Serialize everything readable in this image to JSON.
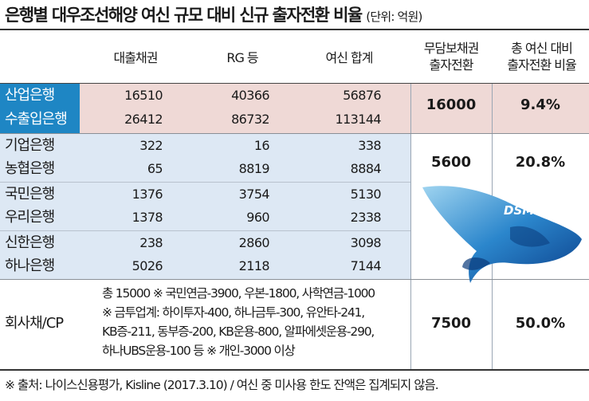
{
  "title": "은행별 대우조선해양 여신 규모 대비 신규 출자전환 비율",
  "unit": "(단위: 억원)",
  "columns": {
    "c1": "대출채권",
    "c2": "RG 등",
    "c3": "여신 합계",
    "c4_line1": "무담보채권",
    "c4_line2": "출자전환",
    "c5_line1": "총 여신 대비",
    "c5_line2": "출자전환 비율"
  },
  "rows": [
    {
      "bank": "산업은행",
      "loan": "16510",
      "rg": "40366",
      "total": "56876"
    },
    {
      "bank": "수출입은행",
      "loan": "26412",
      "rg": "86732",
      "total": "113144"
    },
    {
      "bank": "기업은행",
      "loan": "322",
      "rg": "16",
      "total": "338"
    },
    {
      "bank": "농협은행",
      "loan": "65",
      "rg": "8819",
      "total": "8884"
    },
    {
      "bank": "국민은행",
      "loan": "1376",
      "rg": "3754",
      "total": "5130"
    },
    {
      "bank": "우리은행",
      "loan": "1378",
      "rg": "960",
      "total": "2338"
    },
    {
      "bank": "신한은행",
      "loan": "238",
      "rg": "2860",
      "total": "3098"
    },
    {
      "bank": "하나은행",
      "loan": "5026",
      "rg": "2118",
      "total": "7144"
    }
  ],
  "groups": {
    "g1": {
      "conversion": "16000",
      "ratio": "9.4%"
    },
    "g2": {
      "conversion": "5600",
      "ratio": "20.8%"
    },
    "g3": {
      "conversion": "7500",
      "ratio": "50.0%"
    }
  },
  "bond": {
    "label": "회사채/CP",
    "line1": "총 15000  ※ 국민연금-3900, 우본-1800, 사학연금-1000",
    "line2": "※ 금투업계: 하이투자-400, 하나금투-300, 유안타-241,",
    "line3": "KB증-211, 동부증-200, KB운용-800, 알파에셋운용-290,",
    "line4": "하나UBS운용-100 등  ※ 개인-3000 이상"
  },
  "logo_text": "DSME",
  "footer": "※ 출처: 나이스신용평가, Kisline (2017.3.10) / 여신 중 미사용 한도 잔액은 집계되지 않음."
}
